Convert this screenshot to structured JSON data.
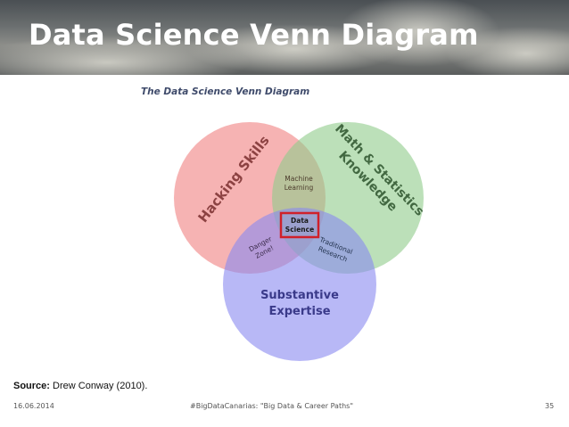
{
  "slide": {
    "title": "Data Science Venn Diagram"
  },
  "diagram": {
    "heading": "The Data Science Venn Diagram",
    "circles": {
      "hacking": {
        "label": "Hacking Skills",
        "color": "#f08080"
      },
      "math": {
        "label_line1": "Math & Statistics",
        "label_line2": "Knowledge",
        "color": "#8fcc8a"
      },
      "substantive": {
        "label_line1": "Substantive",
        "label_line2": "Expertise",
        "color": "#8888f0"
      }
    },
    "overlaps": {
      "machine_learning": {
        "line1": "Machine",
        "line2": "Learning"
      },
      "danger_zone": {
        "line1": "Danger",
        "line2": "Zone!"
      },
      "traditional_research": {
        "line1": "Traditional",
        "line2": "Research"
      },
      "data_science": {
        "line1": "Data",
        "line2": "Science",
        "border_color": "#d0202a"
      }
    }
  },
  "source": {
    "label": "Source:",
    "text": "Drew Conway (2010)."
  },
  "footer": {
    "date": "16.06.2014",
    "event": "#BigDataCanarias: \"Big Data & Career Paths\"",
    "page": "35"
  }
}
